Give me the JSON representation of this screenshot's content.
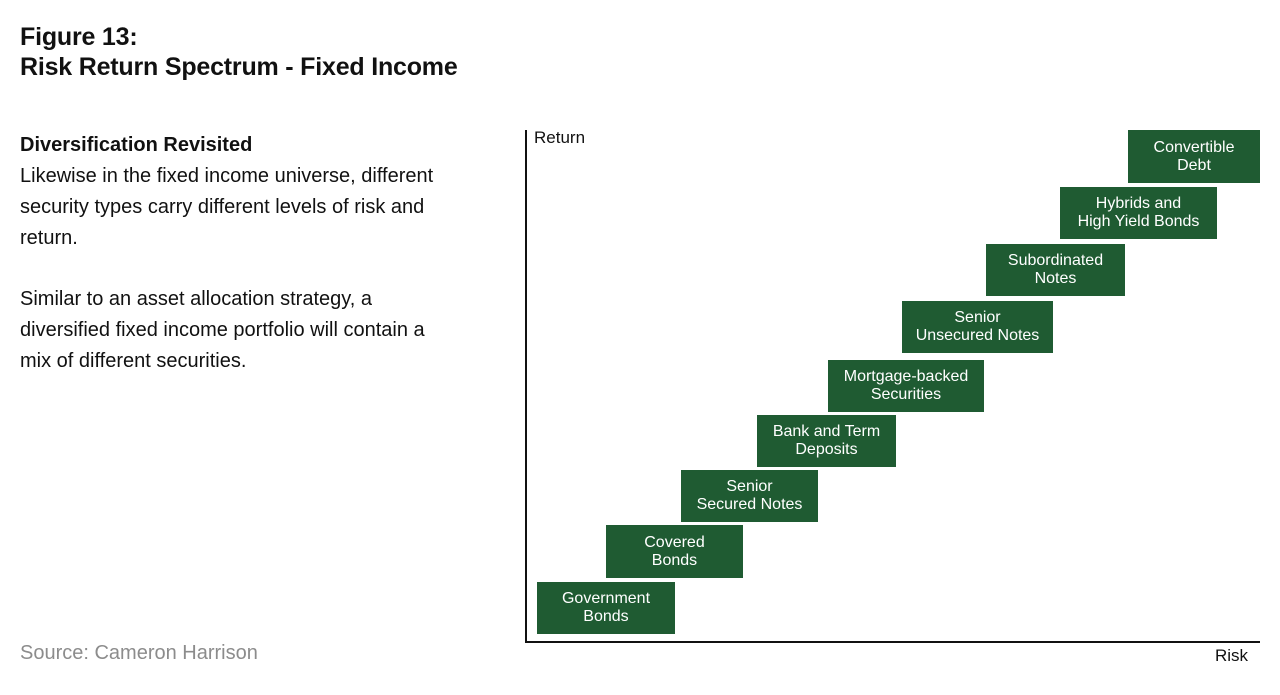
{
  "figure": {
    "title_line1": "Figure 13:",
    "title_line2": "Risk Return Spectrum - Fixed Income"
  },
  "sidebar": {
    "heading": "Diversification Revisited",
    "paragraph1": "Likewise in the fixed income universe, different security types carry different levels of risk and return.",
    "paragraph2": "Similar to an asset allocation strategy, a diversified fixed income portfolio will contain a mix of different securities."
  },
  "source": "Source: Cameron Harrison",
  "chart": {
    "y_axis_label": "Return",
    "x_axis_label": "Risk",
    "box_color": "#1f5b32",
    "securities": [
      {
        "label": "Government\nBonds",
        "risk_rank": 1,
        "return_rank": 1
      },
      {
        "label": "Covered\nBonds",
        "risk_rank": 2,
        "return_rank": 2
      },
      {
        "label": "Senior\nSecured Notes",
        "risk_rank": 3,
        "return_rank": 3
      },
      {
        "label": "Bank and Term\nDeposits",
        "risk_rank": 4,
        "return_rank": 4
      },
      {
        "label": "Mortgage-backed\nSecurities",
        "risk_rank": 5,
        "return_rank": 5
      },
      {
        "label": "Senior\nUnsecured Notes",
        "risk_rank": 6,
        "return_rank": 6
      },
      {
        "label": "Subordinated\nNotes",
        "risk_rank": 7,
        "return_rank": 7
      },
      {
        "label": "Hybrids and\nHigh Yield Bonds",
        "risk_rank": 8,
        "return_rank": 8
      },
      {
        "label": "Convertible\nDebt",
        "risk_rank": 9,
        "return_rank": 9
      }
    ]
  }
}
